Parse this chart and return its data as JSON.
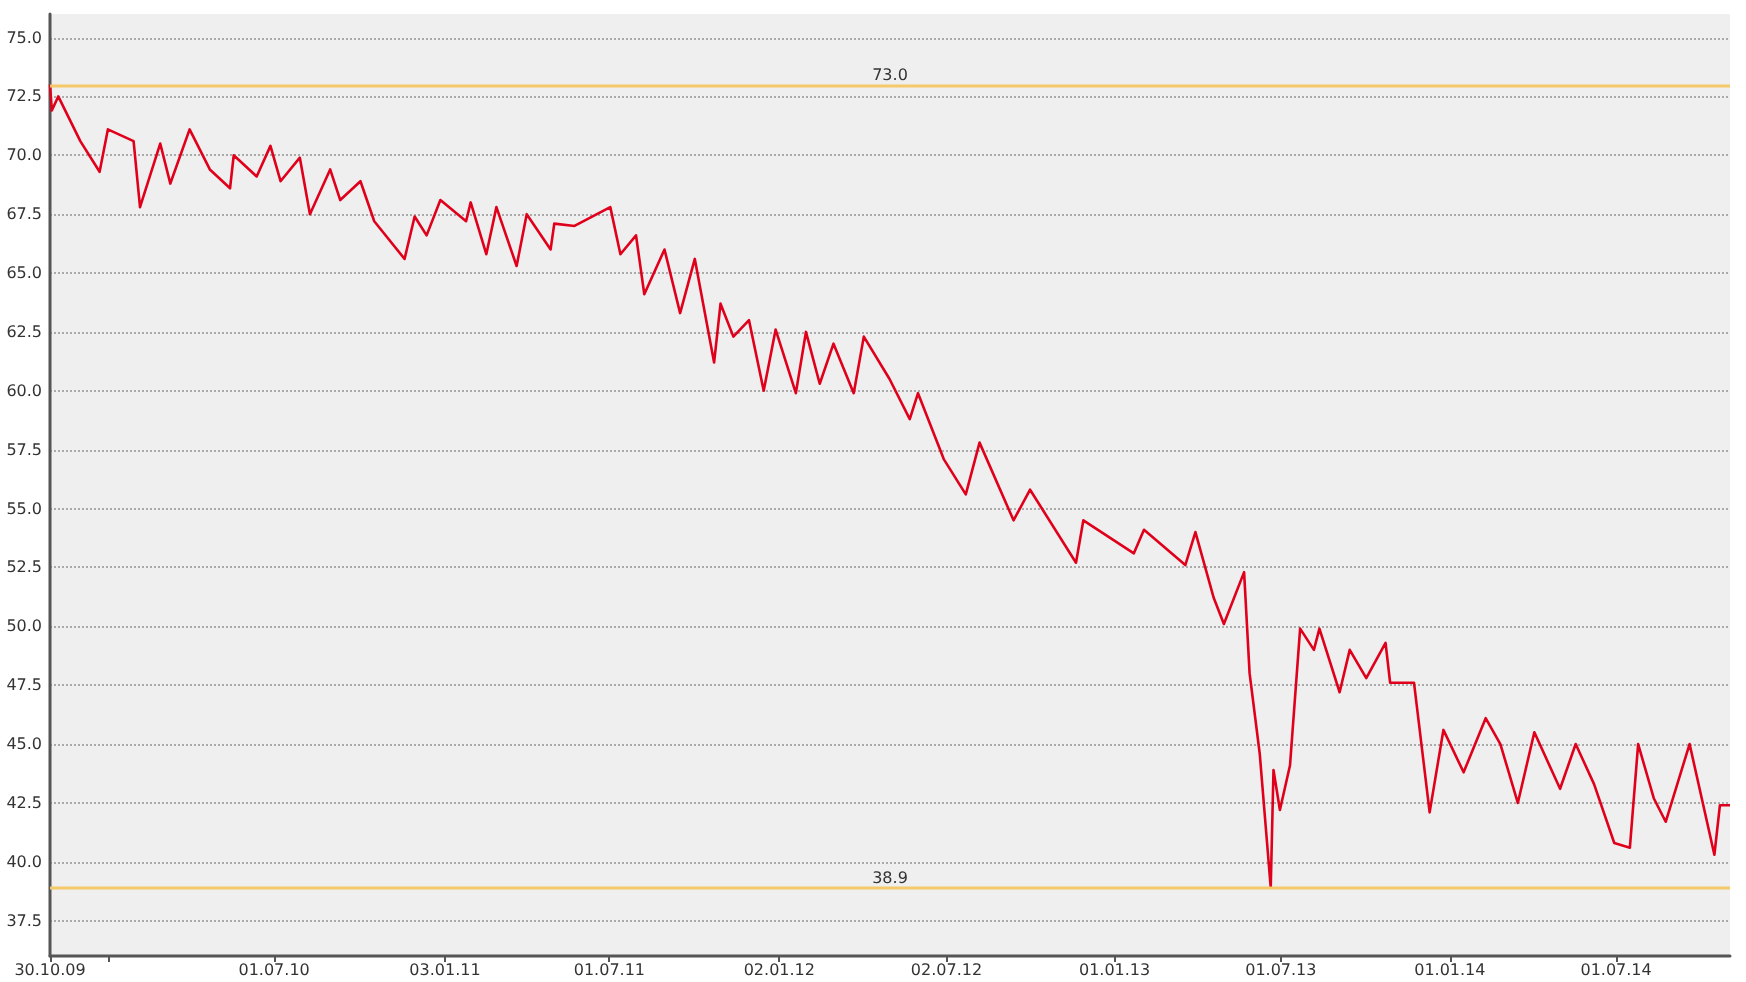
{
  "chart_data": {
    "type": "line",
    "grid": "y",
    "marker": "none",
    "line_style": "solid",
    "xlim": [
      "2009-10-30",
      "2014-11-02"
    ],
    "xticks": [
      {
        "value": "2009-10-30",
        "label": "30.10.09"
      },
      {
        "value": "2010-01-01",
        "label": null
      },
      {
        "value": "2010-07-01",
        "label": "01.07.10"
      },
      {
        "value": "2011-01-03",
        "label": "03.01.11"
      },
      {
        "value": "2011-07-01",
        "label": "01.07.11"
      },
      {
        "value": "2012-01-02",
        "label": "02.01.12"
      },
      {
        "value": "2012-07-02",
        "label": "02.07.12"
      },
      {
        "value": "2013-01-01",
        "label": "01.01.13"
      },
      {
        "value": "2013-07-01",
        "label": "01.07.13"
      },
      {
        "value": "2014-01-01",
        "label": "01.01.14"
      },
      {
        "value": "2014-07-01",
        "label": "01.07.14"
      }
    ],
    "ylim": [
      36,
      76
    ],
    "yticks": [
      {
        "value": 37.5,
        "label": "37.5"
      },
      {
        "value": 40,
        "label": "40.0"
      },
      {
        "value": 42.5,
        "label": "42.5"
      },
      {
        "value": 45,
        "label": "45.0"
      },
      {
        "value": 47.5,
        "label": "47.5"
      },
      {
        "value": 50,
        "label": "50.0"
      },
      {
        "value": 52.5,
        "label": "52.5"
      },
      {
        "value": 55,
        "label": "55.0"
      },
      {
        "value": 57.5,
        "label": "57.5"
      },
      {
        "value": 60,
        "label": "60.0"
      },
      {
        "value": 62.5,
        "label": "62.5"
      },
      {
        "value": 65,
        "label": "65.0"
      },
      {
        "value": 67.5,
        "label": "67.5"
      },
      {
        "value": 70,
        "label": "70.0"
      },
      {
        "value": 72.5,
        "label": "72.5"
      },
      {
        "value": 75,
        "label": "75.0"
      }
    ],
    "ref_lines": [
      {
        "axis": "y",
        "value": 73.0,
        "label": "73.0",
        "color": "#f5c96a"
      },
      {
        "axis": "y",
        "value": 38.9,
        "label": "38.9",
        "color": "#f5c96a"
      }
    ],
    "series": [
      {
        "color": "#e0001b",
        "x": [
          "2009-10-30",
          "2009-11-01",
          "2009-11-08",
          "2009-12-02",
          "2009-12-23",
          "2010-01-01",
          "2010-01-29",
          "2010-02-05",
          "2010-02-27",
          "2010-03-10",
          "2010-03-31",
          "2010-04-22",
          "2010-05-14",
          "2010-05-18",
          "2010-06-12",
          "2010-06-27",
          "2010-07-08",
          "2010-07-29",
          "2010-08-09",
          "2010-08-31",
          "2010-09-11",
          "2010-10-03",
          "2010-10-18",
          "2010-11-20",
          "2010-12-01",
          "2010-12-14",
          "2010-12-29",
          "2011-01-26",
          "2011-01-31",
          "2011-02-17",
          "2011-02-28",
          "2011-03-22",
          "2011-04-02",
          "2011-04-28",
          "2011-05-02",
          "2011-05-24",
          "2011-07-02",
          "2011-07-13",
          "2011-07-30",
          "2011-08-08",
          "2011-08-30",
          "2011-09-16",
          "2011-10-02",
          "2011-10-23",
          "2011-10-30",
          "2011-11-13",
          "2011-11-30",
          "2011-12-16",
          "2011-12-29",
          "2012-01-20",
          "2012-01-31",
          "2012-02-15",
          "2012-03-01",
          "2012-03-23",
          "2012-04-03",
          "2012-05-01",
          "2012-05-23",
          "2012-06-01",
          "2012-06-29",
          "2012-07-23",
          "2012-08-07",
          "2012-09-13",
          "2012-10-01",
          "2012-11-20",
          "2012-11-28",
          "2013-01-22",
          "2013-02-02",
          "2013-03-19",
          "2013-03-30",
          "2013-04-19",
          "2013-04-30",
          "2013-05-22",
          "2013-05-28",
          "2013-06-08",
          "2013-06-20",
          "2013-06-23",
          "2013-06-30",
          "2013-07-11",
          "2013-07-22",
          "2013-08-06",
          "2013-08-12",
          "2013-09-03",
          "2013-09-14",
          "2013-10-02",
          "2013-10-23",
          "2013-10-28",
          "2013-11-23",
          "2013-12-10",
          "2013-12-25",
          "2014-01-16",
          "2014-02-09",
          "2014-02-25",
          "2014-03-16",
          "2014-04-03",
          "2014-05-01",
          "2014-05-18",
          "2014-06-07",
          "2014-06-29",
          "2014-07-16",
          "2014-07-25",
          "2014-08-11",
          "2014-08-24",
          "2014-09-19",
          "2014-10-16",
          "2014-10-22",
          "2014-11-02"
        ],
        "values": [
          73.0,
          71.9,
          72.5,
          70.6,
          69.3,
          71.1,
          70.6,
          67.8,
          70.5,
          68.8,
          71.1,
          69.4,
          68.6,
          70.0,
          69.1,
          70.4,
          68.9,
          69.9,
          67.5,
          69.4,
          68.1,
          68.9,
          67.2,
          65.6,
          67.4,
          66.6,
          68.1,
          67.2,
          68.0,
          65.8,
          67.8,
          65.3,
          67.5,
          66.0,
          67.1,
          67.0,
          67.8,
          65.8,
          66.6,
          64.1,
          66.0,
          63.3,
          65.6,
          61.2,
          63.7,
          62.3,
          63.0,
          60.0,
          62.6,
          59.9,
          62.5,
          60.3,
          62.0,
          59.9,
          62.3,
          60.5,
          58.8,
          59.9,
          57.1,
          55.6,
          57.8,
          54.5,
          55.8,
          52.7,
          54.5,
          53.1,
          54.1,
          52.6,
          54.0,
          51.2,
          50.1,
          52.3,
          48.0,
          44.6,
          38.9,
          43.9,
          42.2,
          44.1,
          49.9,
          49.0,
          49.9,
          47.2,
          49.0,
          47.8,
          49.3,
          47.6,
          47.6,
          42.1,
          45.6,
          43.8,
          46.1,
          45.0,
          42.5,
          45.5,
          43.1,
          45.0,
          43.3,
          40.8,
          40.6,
          45.0,
          42.7,
          41.7,
          45.0,
          40.3,
          42.4,
          42.4
        ]
      }
    ]
  }
}
